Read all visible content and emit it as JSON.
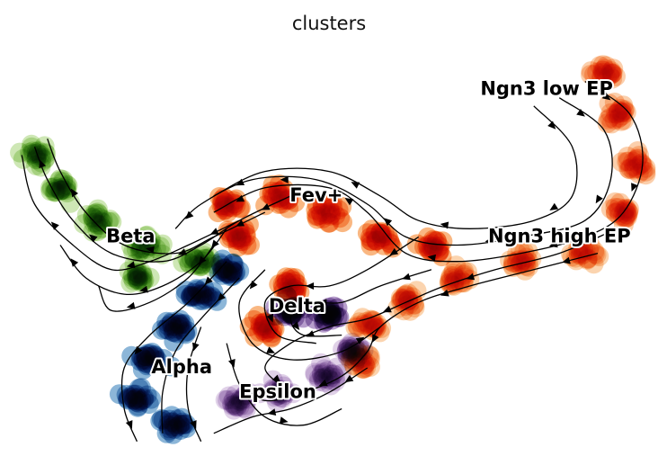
{
  "chart_data": {
    "type": "scatter",
    "subtype": "umap-embedding-with-velocity-streamlines",
    "title": "clusters",
    "xlabel": "",
    "ylabel": "",
    "axes_visible": false,
    "grid": false,
    "clusters": [
      {
        "name": "Ngn3 low EP",
        "color": "#f7a867",
        "centers": [
          [
            0.93,
            0.92
          ],
          [
            0.95,
            0.82
          ],
          [
            0.98,
            0.7
          ],
          [
            0.96,
            0.58
          ]
        ]
      },
      {
        "name": "Ngn3 high EP",
        "color": "#f8b06e",
        "centers": [
          [
            0.9,
            0.48
          ],
          [
            0.8,
            0.46
          ],
          [
            0.7,
            0.42
          ],
          [
            0.62,
            0.36
          ],
          [
            0.56,
            0.3
          ],
          [
            0.55,
            0.22
          ]
        ]
      },
      {
        "name": "Fev+",
        "color": "#f47c1c",
        "centers": [
          [
            0.34,
            0.6
          ],
          [
            0.42,
            0.62
          ],
          [
            0.5,
            0.58
          ],
          [
            0.58,
            0.52
          ],
          [
            0.66,
            0.5
          ],
          [
            0.36,
            0.52
          ],
          [
            0.44,
            0.4
          ],
          [
            0.4,
            0.3
          ]
        ]
      },
      {
        "name": "Beta",
        "color": "#a6d478",
        "centers": [
          [
            0.04,
            0.72
          ],
          [
            0.08,
            0.64
          ],
          [
            0.14,
            0.56
          ],
          [
            0.22,
            0.5
          ],
          [
            0.3,
            0.46
          ],
          [
            0.2,
            0.42
          ]
        ]
      },
      {
        "name": "Alpha",
        "color": "#2e7ab8",
        "centers": [
          [
            0.2,
            0.12
          ],
          [
            0.22,
            0.22
          ],
          [
            0.26,
            0.3
          ],
          [
            0.3,
            0.38
          ],
          [
            0.34,
            0.44
          ],
          [
            0.26,
            0.06
          ]
        ]
      },
      {
        "name": "Delta",
        "color": "#7b4ea2",
        "centers": [
          [
            0.44,
            0.34
          ],
          [
            0.5,
            0.33
          ]
        ]
      },
      {
        "name": "Epsilon",
        "color": "#c6acd6",
        "centers": [
          [
            0.36,
            0.12
          ],
          [
            0.42,
            0.14
          ],
          [
            0.5,
            0.18
          ],
          [
            0.54,
            0.24
          ]
        ]
      }
    ],
    "label_positions": [
      {
        "name": "Ngn3 low EP",
        "x": 0.84,
        "y": 0.88
      },
      {
        "name": "Ngn3 high EP",
        "x": 0.86,
        "y": 0.52
      },
      {
        "name": "Fev+",
        "x": 0.48,
        "y": 0.62
      },
      {
        "name": "Beta",
        "x": 0.19,
        "y": 0.52
      },
      {
        "name": "Alpha",
        "x": 0.27,
        "y": 0.2
      },
      {
        "name": "Delta",
        "x": 0.45,
        "y": 0.35
      },
      {
        "name": "Epsilon",
        "x": 0.42,
        "y": 0.14
      }
    ],
    "streamlines": [
      {
        "points": [
          [
            0.9,
            0.9
          ],
          [
            0.97,
            0.82
          ],
          [
            0.99,
            0.7
          ],
          [
            0.96,
            0.58
          ],
          [
            0.9,
            0.52
          ],
          [
            0.8,
            0.48
          ],
          [
            0.7,
            0.46
          ],
          [
            0.62,
            0.48
          ],
          [
            0.56,
            0.58
          ],
          [
            0.5,
            0.64
          ],
          [
            0.4,
            0.64
          ],
          [
            0.32,
            0.58
          ]
        ]
      },
      {
        "points": [
          [
            0.86,
            0.86
          ],
          [
            0.93,
            0.78
          ],
          [
            0.94,
            0.66
          ],
          [
            0.9,
            0.56
          ],
          [
            0.8,
            0.52
          ],
          [
            0.7,
            0.5
          ],
          [
            0.62,
            0.52
          ],
          [
            0.56,
            0.6
          ],
          [
            0.48,
            0.66
          ],
          [
            0.38,
            0.66
          ],
          [
            0.3,
            0.6
          ],
          [
            0.26,
            0.54
          ]
        ]
      },
      {
        "points": [
          [
            0.82,
            0.84
          ],
          [
            0.88,
            0.74
          ],
          [
            0.88,
            0.62
          ],
          [
            0.82,
            0.56
          ],
          [
            0.72,
            0.54
          ],
          [
            0.64,
            0.56
          ],
          [
            0.58,
            0.62
          ],
          [
            0.5,
            0.68
          ],
          [
            0.4,
            0.68
          ],
          [
            0.32,
            0.62
          ]
        ]
      },
      {
        "points": [
          [
            0.95,
            0.54
          ],
          [
            0.86,
            0.48
          ],
          [
            0.76,
            0.44
          ],
          [
            0.68,
            0.4
          ],
          [
            0.62,
            0.36
          ],
          [
            0.56,
            0.32
          ],
          [
            0.5,
            0.3
          ],
          [
            0.44,
            0.26
          ],
          [
            0.4,
            0.2
          ],
          [
            0.44,
            0.14
          ]
        ]
      },
      {
        "points": [
          [
            0.92,
            0.48
          ],
          [
            0.82,
            0.44
          ],
          [
            0.72,
            0.4
          ],
          [
            0.64,
            0.36
          ],
          [
            0.58,
            0.3
          ],
          [
            0.56,
            0.24
          ],
          [
            0.52,
            0.18
          ],
          [
            0.46,
            0.14
          ],
          [
            0.4,
            0.12
          ],
          [
            0.36,
            0.16
          ]
        ]
      },
      {
        "points": [
          [
            0.64,
            0.52
          ],
          [
            0.56,
            0.44
          ],
          [
            0.5,
            0.4
          ],
          [
            0.44,
            0.4
          ],
          [
            0.4,
            0.36
          ],
          [
            0.42,
            0.28
          ],
          [
            0.48,
            0.26
          ]
        ]
      },
      {
        "points": [
          [
            0.66,
            0.44
          ],
          [
            0.58,
            0.4
          ],
          [
            0.52,
            0.36
          ],
          [
            0.46,
            0.36
          ],
          [
            0.44,
            0.32
          ],
          [
            0.46,
            0.28
          ],
          [
            0.52,
            0.28
          ]
        ]
      },
      {
        "points": [
          [
            0.44,
            0.62
          ],
          [
            0.36,
            0.56
          ],
          [
            0.3,
            0.5
          ],
          [
            0.24,
            0.46
          ],
          [
            0.16,
            0.48
          ],
          [
            0.1,
            0.56
          ],
          [
            0.06,
            0.66
          ],
          [
            0.04,
            0.74
          ]
        ]
      },
      {
        "points": [
          [
            0.4,
            0.58
          ],
          [
            0.32,
            0.52
          ],
          [
            0.26,
            0.48
          ],
          [
            0.18,
            0.5
          ],
          [
            0.12,
            0.58
          ],
          [
            0.08,
            0.68
          ],
          [
            0.06,
            0.76
          ]
        ]
      },
      {
        "points": [
          [
            0.36,
            0.56
          ],
          [
            0.28,
            0.5
          ],
          [
            0.22,
            0.46
          ],
          [
            0.16,
            0.44
          ],
          [
            0.1,
            0.5
          ],
          [
            0.04,
            0.6
          ],
          [
            0.02,
            0.72
          ]
        ]
      },
      {
        "points": [
          [
            0.34,
            0.54
          ],
          [
            0.3,
            0.46
          ],
          [
            0.24,
            0.4
          ],
          [
            0.18,
            0.38
          ],
          [
            0.12,
            0.42
          ],
          [
            0.08,
            0.5
          ]
        ]
      },
      {
        "points": [
          [
            0.32,
            0.5
          ],
          [
            0.28,
            0.42
          ],
          [
            0.22,
            0.36
          ],
          [
            0.16,
            0.34
          ],
          [
            0.14,
            0.4
          ]
        ]
      },
      {
        "points": [
          [
            0.34,
            0.46
          ],
          [
            0.28,
            0.36
          ],
          [
            0.22,
            0.28
          ],
          [
            0.18,
            0.2
          ],
          [
            0.18,
            0.1
          ],
          [
            0.2,
            0.02
          ]
        ]
      },
      {
        "points": [
          [
            0.36,
            0.42
          ],
          [
            0.3,
            0.32
          ],
          [
            0.26,
            0.24
          ],
          [
            0.24,
            0.14
          ],
          [
            0.24,
            0.04
          ]
        ]
      },
      {
        "points": [
          [
            0.3,
            0.3
          ],
          [
            0.28,
            0.2
          ],
          [
            0.28,
            0.1
          ],
          [
            0.3,
            0.02
          ]
        ]
      },
      {
        "points": [
          [
            0.34,
            0.26
          ],
          [
            0.36,
            0.16
          ],
          [
            0.4,
            0.08
          ],
          [
            0.46,
            0.06
          ],
          [
            0.52,
            0.1
          ]
        ]
      },
      {
        "points": [
          [
            0.56,
            0.2
          ],
          [
            0.5,
            0.14
          ],
          [
            0.44,
            0.1
          ],
          [
            0.38,
            0.08
          ],
          [
            0.32,
            0.04
          ]
        ]
      },
      {
        "points": [
          [
            0.4,
            0.44
          ],
          [
            0.36,
            0.36
          ],
          [
            0.38,
            0.26
          ],
          [
            0.44,
            0.22
          ],
          [
            0.52,
            0.24
          ],
          [
            0.58,
            0.3
          ]
        ]
      }
    ]
  }
}
